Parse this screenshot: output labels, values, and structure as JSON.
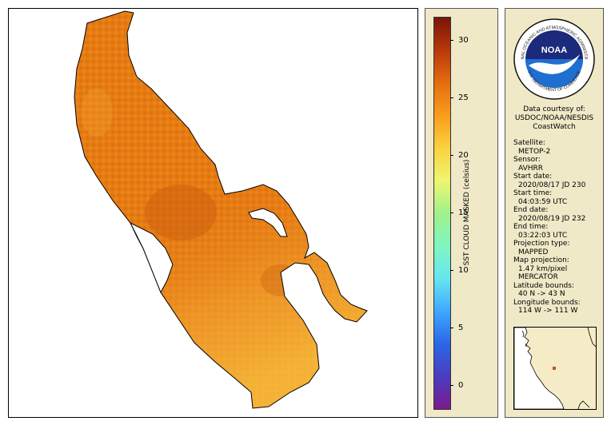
{
  "map": {
    "colors": {
      "land_background": "#ffffff",
      "sst_orange": "#e67c12",
      "sst_dark": "#c85c10",
      "sst_light": "#f5b030"
    }
  },
  "colorbar": {
    "title": "SST CLOUD MASKED (celsius)",
    "min": -2,
    "max": 32,
    "ticks": [
      "0",
      "5",
      "10",
      "15",
      "20",
      "25",
      "30"
    ],
    "tick_values": [
      0,
      5,
      10,
      15,
      20,
      25,
      30
    ],
    "gradient_stops": [
      "#7b1a8c",
      "#4a3dbf",
      "#2b66e8",
      "#3ea8ff",
      "#66e6ef",
      "#7ff5c0",
      "#9ff28a",
      "#eff570",
      "#fbd240",
      "#fa9c1c",
      "#e56d0e",
      "#b8380a",
      "#7a1407"
    ]
  },
  "info": {
    "logo_text": "NOAA",
    "logo_ring_text": "NATIONAL OCEANIC AND ATMOSPHERIC ADMINISTRATION",
    "logo_ring_text_bottom": "U.S. DEPARTMENT OF COMMERCE",
    "courtesy": [
      "Data courtesy of:",
      "USDOC/NOAA/NESDIS",
      "CoastWatch"
    ],
    "fields": [
      {
        "label": "Satellite:",
        "value": "METOP-2"
      },
      {
        "label": "Sensor:",
        "value": "AVHRR"
      },
      {
        "label": "Start date:",
        "value": "2020/08/17 JD 230"
      },
      {
        "label": "Start time:",
        "value": "04:03:59 UTC"
      },
      {
        "label": "End date:",
        "value": "2020/08/19 JD 232"
      },
      {
        "label": "End time:",
        "value": "03:22:03 UTC"
      },
      {
        "label": "Projection type:",
        "value": "MAPPED"
      },
      {
        "label": "Map projection:",
        "value": "1.47 km/pixel"
      },
      {
        "label": "",
        "value": "MERCATOR"
      },
      {
        "label": "Latitude bounds:",
        "value": "40 N -> 43 N"
      },
      {
        "label": "Longitude bounds:",
        "value": "114 W -> 111 W"
      }
    ],
    "locator_marker_color": "#c0561a"
  }
}
